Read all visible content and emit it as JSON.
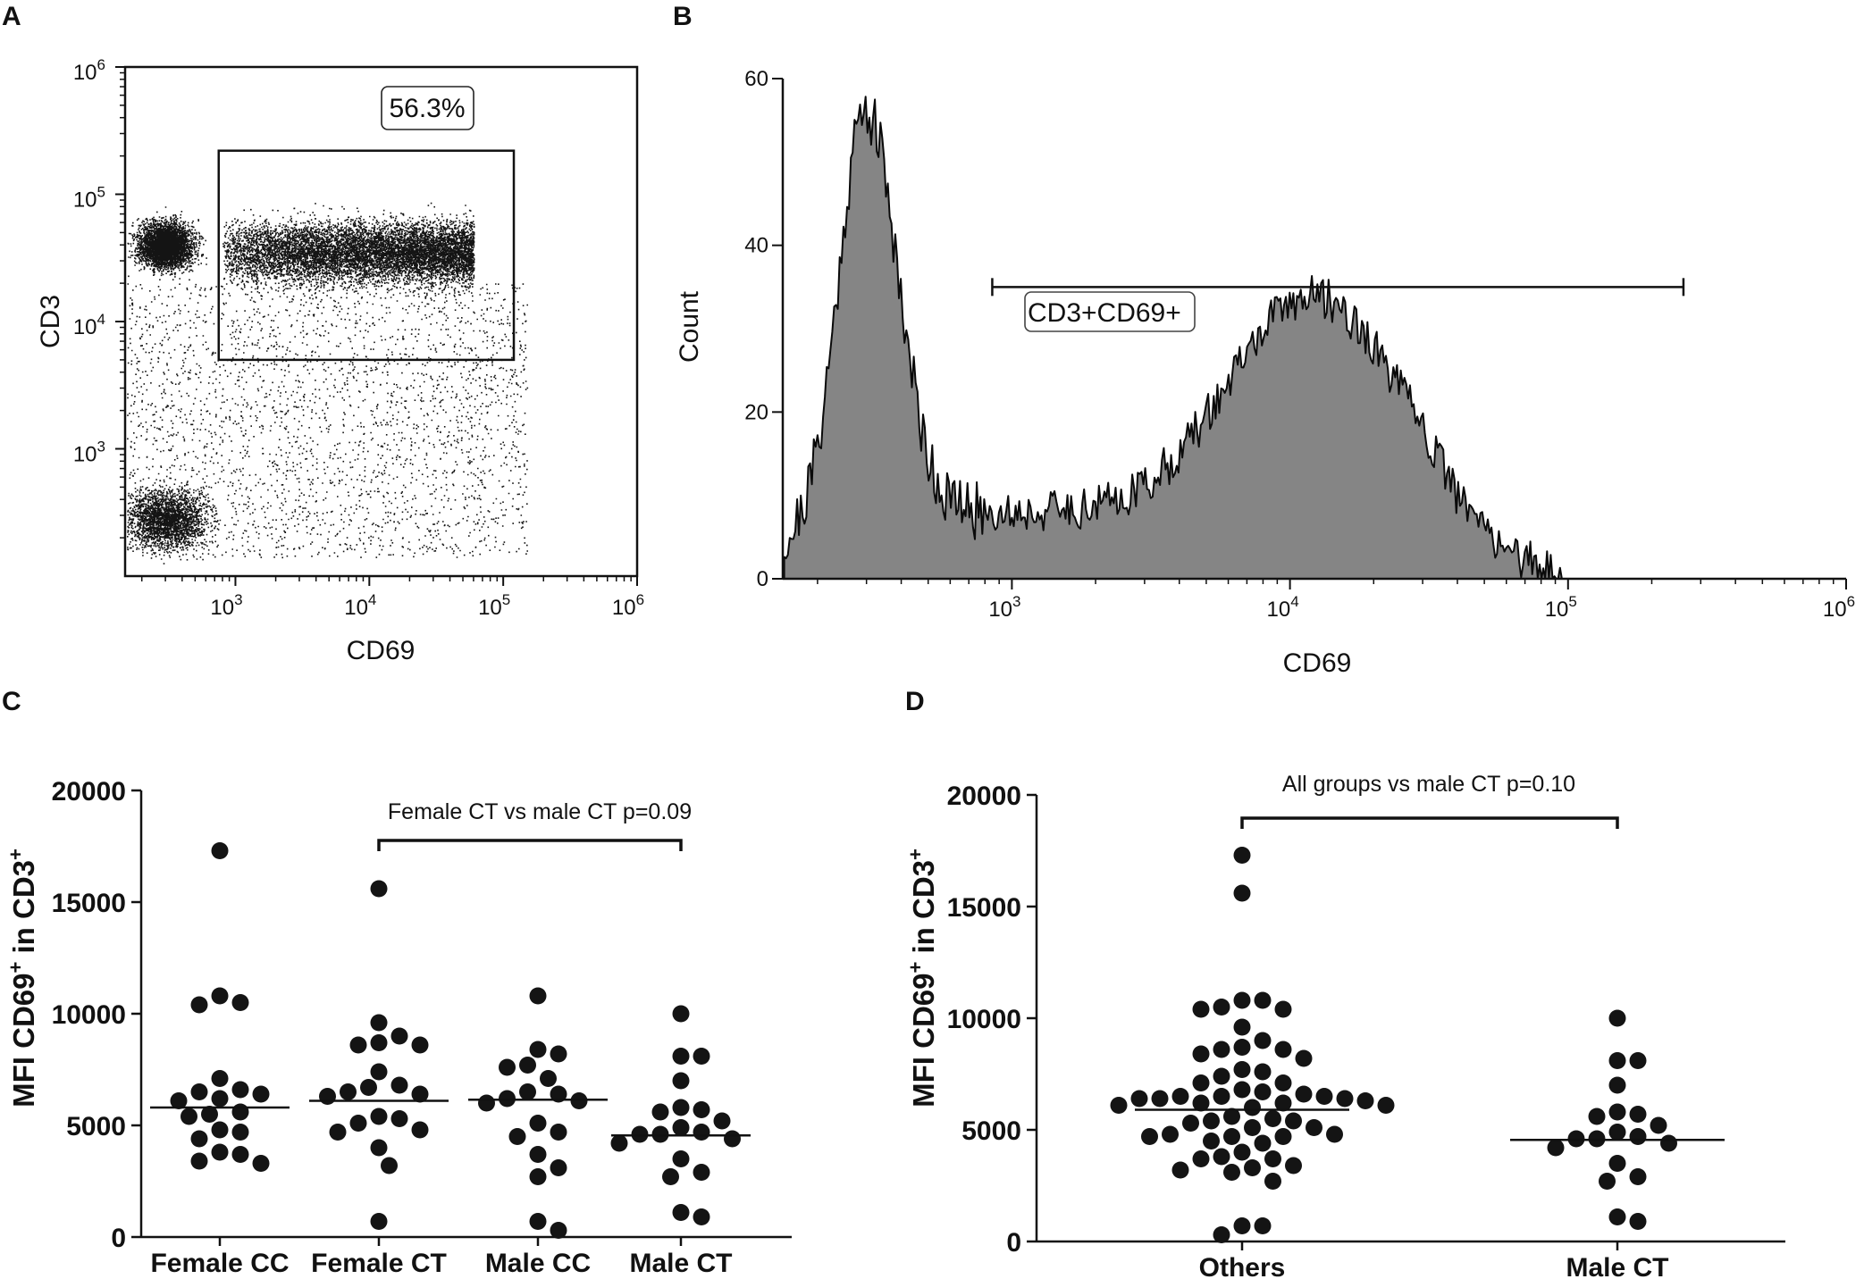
{
  "panel_labels": {
    "a": "A",
    "b": "B",
    "c": "C",
    "d": "D"
  },
  "colors": {
    "dots": "#141414",
    "histogram_fill": "#858585",
    "histogram_line": "#0a0a0a",
    "axes": "#111111"
  },
  "chart_data": [
    {
      "id": "A",
      "type": "scatter",
      "title": "",
      "xlabel": "CD69",
      "ylabel": "CD3",
      "x_scale": "log",
      "y_scale": "log",
      "xlim": [
        150,
        1000000
      ],
      "ylim": [
        100,
        1000000
      ],
      "x_ticks": [
        {
          "value": 1000,
          "base": "10",
          "exp": "3"
        },
        {
          "value": 10000,
          "base": "10",
          "exp": "4"
        },
        {
          "value": 100000,
          "base": "10",
          "exp": "5"
        },
        {
          "value": 1000000,
          "base": "10",
          "exp": "6"
        }
      ],
      "y_ticks": [
        {
          "value": 1000,
          "base": "10",
          "exp": "3"
        },
        {
          "value": 10000,
          "base": "10",
          "exp": "4"
        },
        {
          "value": 100000,
          "base": "10",
          "exp": "5"
        },
        {
          "value": 1000000,
          "base": "10",
          "exp": "6"
        }
      ],
      "gate": {
        "x_range": [
          750,
          120000
        ],
        "y_range": [
          5000,
          220000
        ],
        "label": "56.3%"
      },
      "populations": [
        {
          "name": "CD3+CD69- cluster",
          "center_cd69": 300,
          "center_cd3": 40000
        },
        {
          "name": "CD3+CD69+ cluster",
          "center_cd69": 8000,
          "center_cd3": 35000
        },
        {
          "name": "CD3- cluster",
          "center_cd69": 300,
          "center_cd3": 280
        }
      ]
    },
    {
      "id": "B",
      "type": "area",
      "title": "",
      "xlabel": "CD69",
      "ylabel": "Count",
      "x_scale": "log",
      "xlim": [
        150,
        1000000
      ],
      "ylim": [
        0,
        60
      ],
      "x_ticks": [
        {
          "value": 1000,
          "base": "10",
          "exp": "3"
        },
        {
          "value": 10000,
          "base": "10",
          "exp": "4"
        },
        {
          "value": 100000,
          "base": "10",
          "exp": "5"
        },
        {
          "value": 1000000,
          "base": "10",
          "exp": "6"
        }
      ],
      "y_ticks": [
        0,
        20,
        40,
        60
      ],
      "gate": {
        "x_range": [
          850,
          260000
        ],
        "y_level": 35,
        "label": "CD3+CD69+"
      },
      "peaks": [
        {
          "cd69": 300,
          "count": 58
        },
        {
          "cd69": 12000,
          "count": 33
        }
      ]
    },
    {
      "id": "C",
      "type": "scatter",
      "title": "",
      "xlabel": "",
      "ylabel_main": "MFI CD69",
      "ylabel_mid": " in CD3",
      "ylabel_sup": "+",
      "ylim": [
        0,
        20000
      ],
      "y_ticks": [
        0,
        5000,
        10000,
        15000,
        20000
      ],
      "categories": [
        "Female CC",
        "Female CT",
        "Male CC",
        "Male CT"
      ],
      "medians": [
        5800,
        6100,
        6150,
        4550
      ],
      "series": [
        {
          "name": "Female CC",
          "values": [
            17300,
            10800,
            10500,
            10400,
            7100,
            6600,
            6500,
            6400,
            6200,
            6100,
            5600,
            5500,
            5400,
            4800,
            4700,
            4400,
            3800,
            3700,
            3400,
            3300
          ]
        },
        {
          "name": "Female CT",
          "values": [
            15600,
            9600,
            9000,
            8700,
            8600,
            8600,
            7400,
            6800,
            6700,
            6500,
            6400,
            6300,
            5400,
            5300,
            5100,
            4800,
            4700,
            4000,
            3200,
            700
          ]
        },
        {
          "name": "Male CC",
          "values": [
            10800,
            8400,
            8200,
            7700,
            7600,
            7100,
            6500,
            6400,
            6200,
            6100,
            6000,
            5100,
            4700,
            4500,
            3700,
            3100,
            2700,
            700,
            300
          ]
        },
        {
          "name": "Male CT",
          "values": [
            10000,
            8100,
            8100,
            7000,
            5800,
            5700,
            5600,
            5200,
            4900,
            4700,
            4600,
            4600,
            4400,
            4200,
            3500,
            2900,
            2700,
            1100,
            900
          ]
        }
      ],
      "annotation": {
        "text": "Female CT vs male CT p=0.09",
        "from": "Female CT",
        "to": "Male CT"
      }
    },
    {
      "id": "D",
      "type": "scatter",
      "title": "",
      "xlabel": "",
      "ylabel_main": "MFI CD69",
      "ylabel_mid": " in CD3",
      "ylabel_sup": "+",
      "ylim": [
        0,
        20000
      ],
      "y_ticks": [
        0,
        5000,
        10000,
        15000,
        20000
      ],
      "categories": [
        "Others",
        "Male CT"
      ],
      "medians": [
        5900,
        4550
      ],
      "series": [
        {
          "name": "Others",
          "values": [
            17300,
            15600,
            10800,
            10800,
            10500,
            10400,
            10400,
            9600,
            9000,
            8700,
            8600,
            8600,
            8400,
            8200,
            7700,
            7600,
            7400,
            7100,
            7100,
            6800,
            6700,
            6600,
            6500,
            6500,
            6500,
            6400,
            6400,
            6400,
            6300,
            6200,
            6200,
            6100,
            6100,
            6000,
            5600,
            5500,
            5400,
            5400,
            5300,
            5100,
            5100,
            4800,
            4800,
            4700,
            4700,
            4700,
            4500,
            4400,
            4000,
            3800,
            3700,
            3700,
            3400,
            3300,
            3200,
            3100,
            2700,
            700,
            700,
            300
          ]
        },
        {
          "name": "Male CT",
          "values": [
            10000,
            8100,
            8100,
            7000,
            5800,
            5700,
            5600,
            5200,
            4900,
            4700,
            4600,
            4600,
            4400,
            4200,
            3500,
            2900,
            2700,
            1100,
            900
          ]
        }
      ],
      "annotation": {
        "text": "All groups vs male CT p=0.10",
        "from": "Others",
        "to": "Male CT"
      }
    }
  ]
}
